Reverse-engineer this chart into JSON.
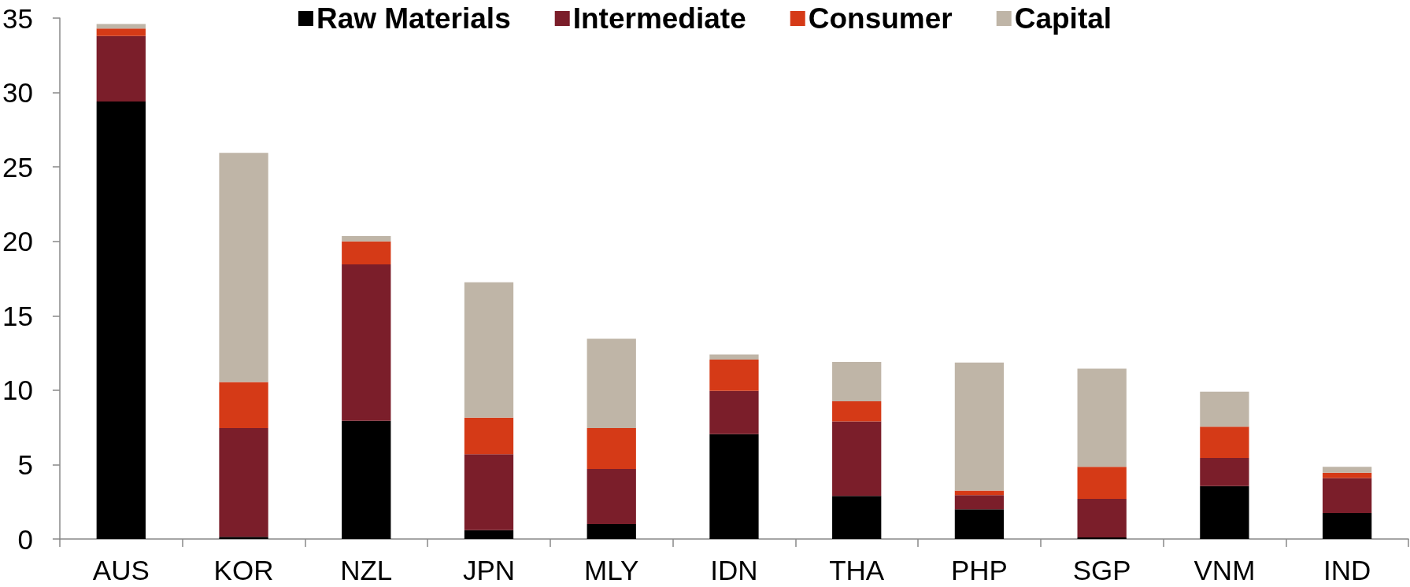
{
  "chart_data": {
    "type": "bar",
    "stacked": true,
    "categories": [
      "AUS",
      "KOR",
      "NZL",
      "JPN",
      "MLY",
      "IDN",
      "THA",
      "PHP",
      "SGP",
      "VNM",
      "IND"
    ],
    "series": [
      {
        "name": "Raw Materials",
        "color": "#000000",
        "values": [
          29.4,
          0.15,
          7.95,
          0.6,
          1.0,
          7.05,
          2.9,
          2.0,
          0.1,
          3.55,
          1.75
        ]
      },
      {
        "name": "Intermediate",
        "color": "#7b1e2a",
        "values": [
          4.4,
          7.3,
          10.5,
          5.1,
          3.7,
          2.9,
          5.0,
          0.95,
          2.6,
          1.9,
          2.35
        ]
      },
      {
        "name": "Consumer",
        "color": "#d53a17",
        "values": [
          0.5,
          3.1,
          1.55,
          2.45,
          2.75,
          2.1,
          1.35,
          0.3,
          2.15,
          2.1,
          0.35
        ]
      },
      {
        "name": "Capital",
        "color": "#bfb5a7",
        "values": [
          0.3,
          15.4,
          0.35,
          9.1,
          6.0,
          0.35,
          2.65,
          8.6,
          6.6,
          2.35,
          0.4
        ]
      }
    ],
    "ylim": [
      0,
      35
    ],
    "yticks": [
      0,
      5,
      10,
      15,
      20,
      25,
      30,
      35
    ],
    "grid": false,
    "legend": "top"
  }
}
